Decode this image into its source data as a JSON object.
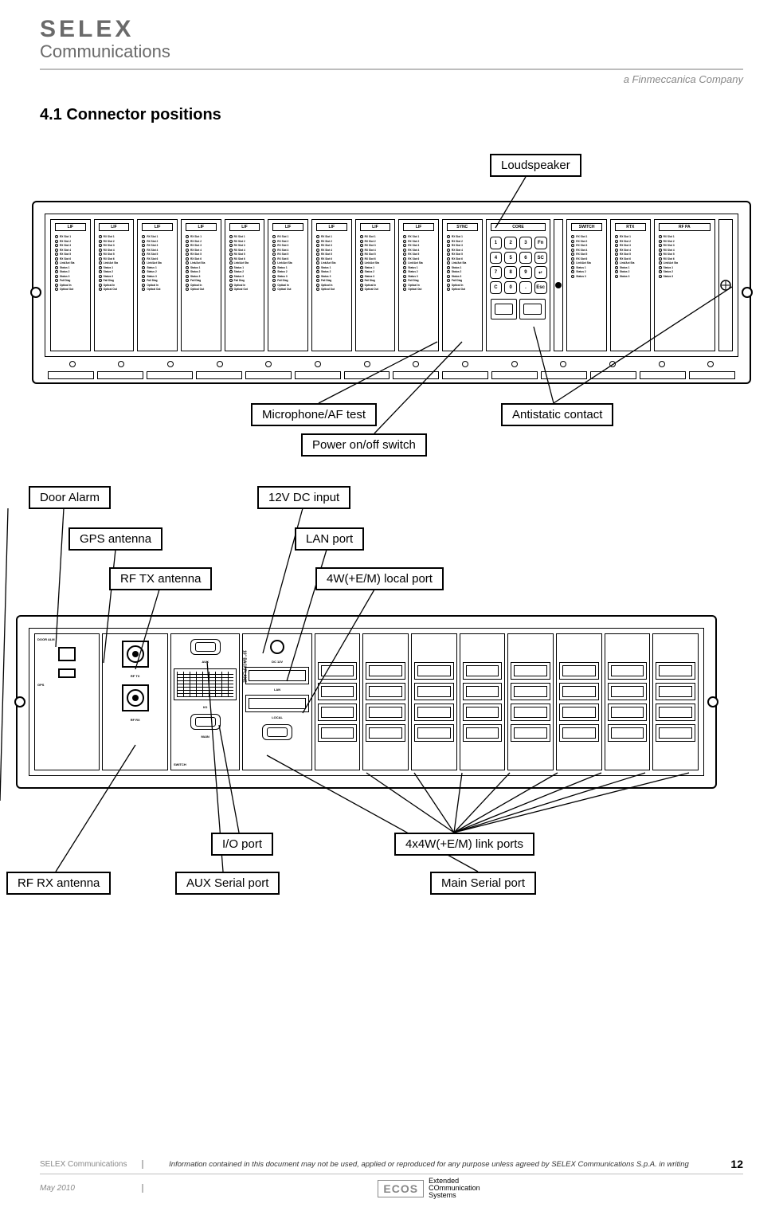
{
  "header": {
    "logo_main": "SELEX",
    "logo_sub": "Communications",
    "finmeccanica": "a Finmeccanica Company"
  },
  "section_title": "4.1 Connector positions",
  "callouts_front": {
    "loudspeaker": "Loudspeaker",
    "mic_af": "Microphone/AF test",
    "power": "Power on/off switch",
    "antistatic": "Antistatic contact"
  },
  "callouts_rear": {
    "door_alarm": "Door Alarm",
    "gps": "GPS antenna",
    "rf_tx": "RF TX antenna",
    "dc12": "12V DC input",
    "lan": "LAN port",
    "local4w": "4W(+E/M) local port",
    "io": "I/O port",
    "rf_rx": "RF RX antenna",
    "aux_serial": "AUX Serial port",
    "main_serial": "Main Serial port",
    "link4w": "4x4W(+E/M) link ports"
  },
  "front_panel": {
    "type": "diagram",
    "slots": [
      {
        "hdr": "LIF"
      },
      {
        "hdr": "LIF"
      },
      {
        "hdr": "LIF"
      },
      {
        "hdr": "LIF"
      },
      {
        "hdr": "LIF"
      },
      {
        "hdr": "LIF"
      },
      {
        "hdr": "LIF"
      },
      {
        "hdr": "LIF"
      },
      {
        "hdr": "LIF"
      },
      {
        "hdr": "SYNC"
      }
    ],
    "core_hdr": "CORE",
    "switch_hdr": "SWITCH",
    "rtx_hdr": "RTX",
    "rfpa_hdr": "RF PA",
    "keypad": [
      "1",
      "2",
      "3",
      "Fn",
      "4",
      "5",
      "6",
      "SC",
      "7",
      "8",
      "9",
      "↵",
      "C",
      "0",
      ".",
      "Esc"
    ],
    "led_labels": [
      "RX Slot 1",
      "RX Slot 2",
      "RX Slot 3",
      "RX Slot 4",
      "RX Slot 5",
      "RX Slot 6",
      "Link/Act Sta",
      "Status 1",
      "Status 2",
      "Status 3",
      "Fail Diag",
      "Optical In",
      "Optical Out"
    ]
  },
  "rear_panel": {
    "type": "diagram",
    "link_slots": 8,
    "switch_labels": {
      "aux": "AUX",
      "io": "I/O",
      "main": "MAIN"
    },
    "core_labels": {
      "dc": "DC 12V",
      "lan": "LAN",
      "local": "LOCAL"
    },
    "rtx_labels": {
      "gps": "GPS",
      "tx": "RF TX",
      "rx": "RF RX",
      "alarm": "DOOR ALM"
    },
    "backplane": "10\" BACKPLANE"
  },
  "footer": {
    "left": "SELEX Communications",
    "mid": "Information contained in this document may not be used, applied or reproduced for any purpose unless agreed by SELEX Communications S.p.A. in writing",
    "page": "12",
    "date": "May 2010",
    "ecos": "ECOS",
    "ecos_lines": [
      "Extended",
      "COmmunication",
      "Systems"
    ]
  },
  "colors": {
    "text": "#000000",
    "muted": "#888888",
    "rule": "#bdbdbd",
    "ecos_red": "#c00000",
    "bg": "#ffffff"
  }
}
